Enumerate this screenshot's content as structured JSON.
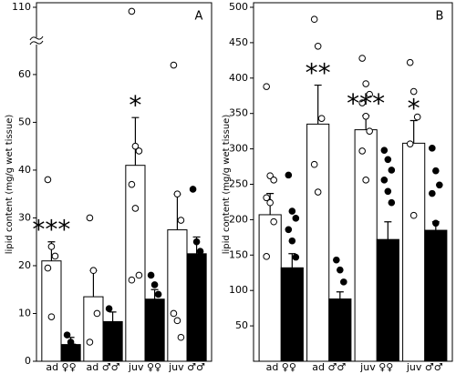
{
  "chart_data": [
    {
      "type": "bar",
      "panel": "A",
      "ylabel": "lipid content (mg/g wet tissue)",
      "categories": [
        "ad ♀♀",
        "ad ♂♂",
        "juv ♀♀",
        "juv ♂♂"
      ],
      "ylim": [
        0,
        110
      ],
      "yticks": [
        0,
        10,
        20,
        30,
        40,
        50,
        60,
        110
      ],
      "y_break": true,
      "significance": [
        "***",
        null,
        "*",
        null
      ],
      "series": [
        {
          "color": "#ffffff",
          "values": [
            21,
            13.5,
            41,
            27.5
          ],
          "errors": [
            4,
            5.5,
            10,
            7.5
          ],
          "points": [
            [
              38,
              24,
              22,
              19.5,
              9.3
            ],
            [
              30,
              19,
              10,
              4
            ],
            [
              107,
              45,
              44,
              37,
              32,
              18,
              17
            ],
            [
              67,
              35,
              29.5,
              10,
              8.5,
              5
            ]
          ]
        },
        {
          "color": "#000000",
          "values": [
            3.5,
            8.3,
            13,
            22.5
          ],
          "errors": [
            1.5,
            2,
            2,
            3.5
          ],
          "points": [
            [
              5.5,
              4,
              3,
              2,
              1.5
            ],
            [
              11,
              5
            ],
            [
              18,
              16,
              14,
              12,
              10,
              8.5,
              6
            ],
            [
              36,
              25,
              23,
              19,
              13.5,
              10.5
            ]
          ]
        }
      ]
    },
    {
      "type": "bar",
      "panel": "B",
      "ylabel": "lipid content (mg/g wet tissue)",
      "categories": [
        "ad ♀♀",
        "ad ♂♂",
        "juv ♀♀",
        "juv ♂♂"
      ],
      "ylim": [
        0,
        500
      ],
      "yticks": [
        50,
        100,
        150,
        200,
        250,
        300,
        350,
        400,
        450,
        500
      ],
      "significance": [
        null,
        "**",
        "***",
        "*"
      ],
      "series": [
        {
          "color": "#ffffff",
          "values": [
            207,
            335,
            327,
            308
          ],
          "errors": [
            30,
            55,
            20,
            32
          ],
          "points": [
            [
              388,
              262,
              256,
              231,
              224,
              197,
              148
            ],
            [
              483,
              445,
              343,
              278,
              239
            ],
            [
              428,
              392,
              377,
              365,
              346,
              325,
              297,
              256
            ],
            [
              422,
              381,
              345,
              307,
              206
            ]
          ]
        },
        {
          "color": "#000000",
          "values": [
            132,
            88,
            172,
            185
          ],
          "errors": [
            20,
            10,
            25,
            12
          ],
          "points": [
            [
              263,
              212,
              202,
              186,
              170,
              147,
              127,
              104
            ],
            [
              143,
              129,
              112
            ],
            [
              298,
              285,
              270,
              256,
              240,
              224,
              149,
              123,
              82
            ],
            [
              301,
              269,
              249,
              237,
              195,
              156,
              127,
              98
            ]
          ]
        }
      ]
    }
  ]
}
